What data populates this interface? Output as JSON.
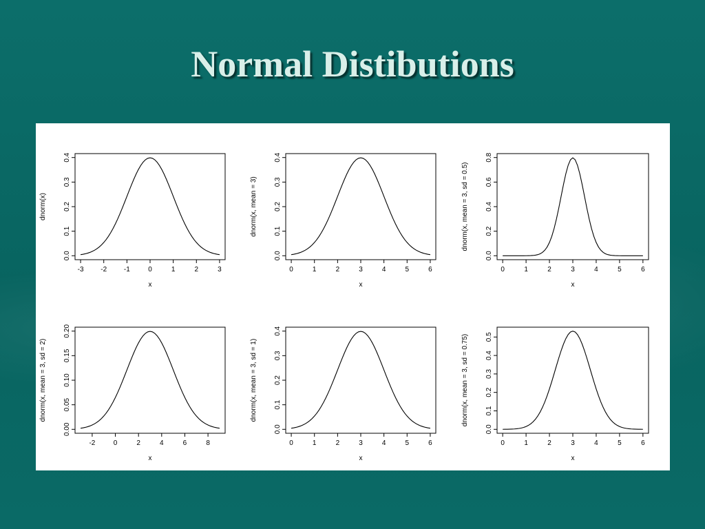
{
  "slide": {
    "title": "Normal Distibutions"
  },
  "chart_data": [
    {
      "type": "line",
      "xlabel": "x",
      "ylabel": "dnorm(x)",
      "mean": 0,
      "sd": 1,
      "xlim": [
        -3,
        3
      ],
      "xticks": [
        -3,
        -2,
        -1,
        0,
        1,
        2,
        3
      ],
      "yticks": [
        0.0,
        0.1,
        0.2,
        0.3,
        0.4
      ],
      "ytick_labels": [
        "0.0",
        "0.1",
        "0.2",
        "0.3",
        "0.4"
      ],
      "ylim": [
        0,
        0.4
      ]
    },
    {
      "type": "line",
      "xlabel": "x",
      "ylabel": "dnorm(x, mean = 3)",
      "mean": 3,
      "sd": 1,
      "xlim": [
        0,
        6
      ],
      "xticks": [
        0,
        1,
        2,
        3,
        4,
        5,
        6
      ],
      "yticks": [
        0.0,
        0.1,
        0.2,
        0.3,
        0.4
      ],
      "ytick_labels": [
        "0.0",
        "0.1",
        "0.2",
        "0.3",
        "0.4"
      ],
      "ylim": [
        0,
        0.4
      ]
    },
    {
      "type": "line",
      "xlabel": "x",
      "ylabel": "dnorm(x, mean = 3, sd = 0.5)",
      "mean": 3,
      "sd": 0.5,
      "xlim": [
        0,
        6
      ],
      "xticks": [
        0,
        1,
        2,
        3,
        4,
        5,
        6
      ],
      "yticks": [
        0.0,
        0.2,
        0.4,
        0.6,
        0.8
      ],
      "ytick_labels": [
        "0.0",
        "0.2",
        "0.4",
        "0.6",
        "0.8"
      ],
      "ylim": [
        0,
        0.8
      ]
    },
    {
      "type": "line",
      "xlabel": "x",
      "ylabel": "dnorm(x, mean = 3, sd = 2)",
      "mean": 3,
      "sd": 2,
      "xlim": [
        -3,
        9
      ],
      "xticks": [
        -2,
        0,
        2,
        4,
        6,
        8
      ],
      "yticks": [
        0.0,
        0.05,
        0.1,
        0.15,
        0.2
      ],
      "ytick_labels": [
        "0.00",
        "0.05",
        "0.10",
        "0.15",
        "0.20"
      ],
      "ylim": [
        0,
        0.2
      ]
    },
    {
      "type": "line",
      "xlabel": "x",
      "ylabel": "dnorm(x, mean = 3, sd = 1)",
      "mean": 3,
      "sd": 1,
      "xlim": [
        0,
        6
      ],
      "xticks": [
        0,
        1,
        2,
        3,
        4,
        5,
        6
      ],
      "yticks": [
        0.0,
        0.1,
        0.2,
        0.3,
        0.4
      ],
      "ytick_labels": [
        "0.0",
        "0.1",
        "0.2",
        "0.3",
        "0.4"
      ],
      "ylim": [
        0,
        0.4
      ]
    },
    {
      "type": "line",
      "xlabel": "x",
      "ylabel": "dnorm(x, mean = 3, sd = 0.75)",
      "mean": 3,
      "sd": 0.75,
      "xlim": [
        0,
        6
      ],
      "xticks": [
        0,
        1,
        2,
        3,
        4,
        5,
        6
      ],
      "yticks": [
        0.0,
        0.1,
        0.2,
        0.3,
        0.4,
        0.5
      ],
      "ytick_labels": [
        "0.0",
        "0.1",
        "0.2",
        "0.3",
        "0.4",
        "0.5"
      ],
      "ylim": [
        0,
        0.532
      ]
    }
  ]
}
